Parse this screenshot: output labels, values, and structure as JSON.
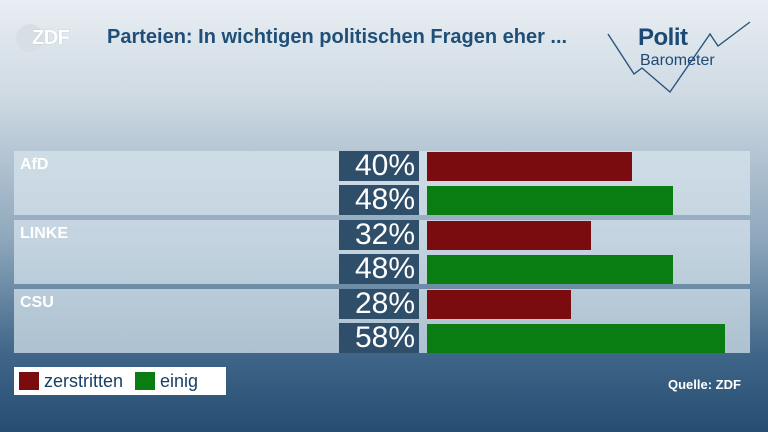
{
  "branding": {
    "broadcaster_logo": "ZDF",
    "program_logo_line1": "Polit",
    "program_logo_line2": "Barometer"
  },
  "chart_data": {
    "type": "bar",
    "orientation": "horizontal",
    "title": "Parteien: In wichtigen politischen Fragen eher ...",
    "categories": [
      "AfD",
      "LINKE",
      "CSU"
    ],
    "series": [
      {
        "name": "zerstritten",
        "color": "#7a0c0f",
        "values": [
          40,
          32,
          28
        ],
        "labels": [
          "40%",
          "32%",
          "28%"
        ]
      },
      {
        "name": "einig",
        "color": "#0a7d12",
        "values": [
          48,
          48,
          58
        ],
        "labels": [
          "48%",
          "48%",
          "58%"
        ]
      }
    ],
    "unit": "%",
    "xlim": [
      0,
      60
    ],
    "legend": "bottom-left",
    "source": "Quelle: ZDF"
  }
}
